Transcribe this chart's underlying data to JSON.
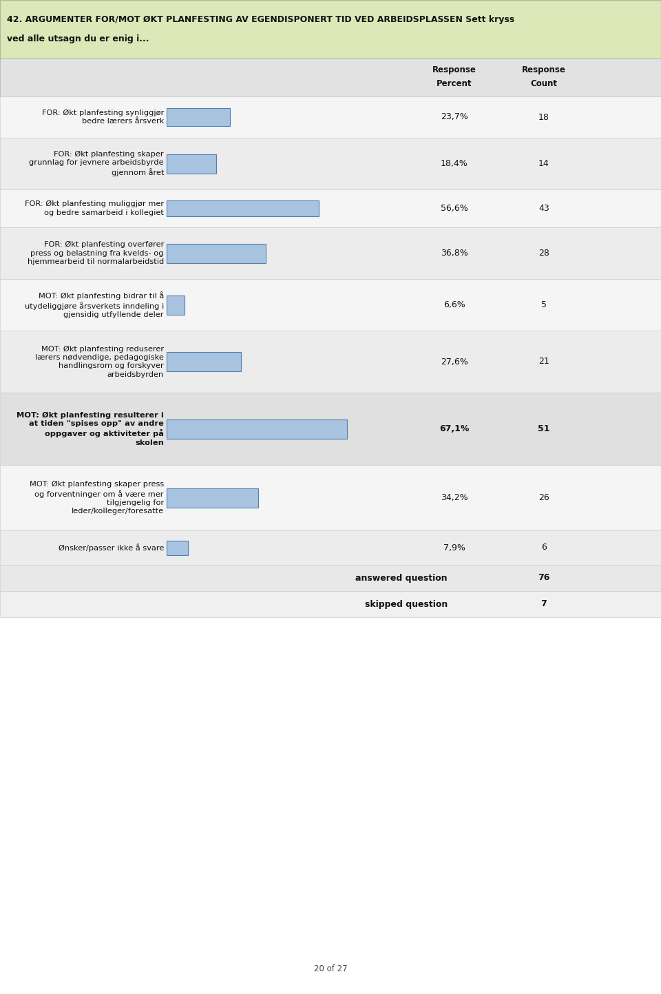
{
  "title_line1": "42. ARGUMENTER FOR/MOT ØKT PLANFESTING AV EGENDISPONERT TID VED ARBEIDSPLASSEN Sett kryss",
  "title_line2": "ved alle utsagn du er enig i...",
  "title_bg": "#dce8b8",
  "header_bg": "#e2e2e2",
  "bar_fill": "#a8c4e0",
  "bar_edge": "#5080b0",
  "rows": [
    {
      "label": "FOR: Økt planfesting synliggjør\nbedre lærers årsverk",
      "percent": 23.7,
      "percent_str": "23,7%",
      "count": "18",
      "bold": false,
      "n_lines": 2
    },
    {
      "label": "FOR: Økt planfesting skaper\ngrunnlag for jevnere arbeidsbyrde\ngjennom året",
      "percent": 18.4,
      "percent_str": "18,4%",
      "count": "14",
      "bold": false,
      "n_lines": 3
    },
    {
      "label": "FOR: Økt planfesting muliggjør mer\nog bedre samarbeid i kollegiet",
      "percent": 56.6,
      "percent_str": "56,6%",
      "count": "43",
      "bold": false,
      "n_lines": 2
    },
    {
      "label": "FOR: Økt planfesting overfører\npress og belastning fra kvelds- og\nhjemmearbeid til normalarbeidstid",
      "percent": 36.8,
      "percent_str": "36,8%",
      "count": "28",
      "bold": false,
      "n_lines": 3
    },
    {
      "label": "MOT: Økt planfesting bidrar til å\nutydeliggjøre årsverkets inndeling i\ngjensidig utfyllende deler",
      "percent": 6.6,
      "percent_str": "6,6%",
      "count": "5",
      "bold": false,
      "n_lines": 3
    },
    {
      "label": "MOT: Økt planfesting reduserer\nlærers nødvendige, pedagogiske\nhandlingsrom og forskyver\narbeidsbyrden",
      "percent": 27.6,
      "percent_str": "27,6%",
      "count": "21",
      "bold": false,
      "n_lines": 4
    },
    {
      "label": "MOT: Økt planfesting resulterer i\nat tiden \"spises opp\" av andre\noppgaver og aktiviteter på\nskolen",
      "percent": 67.1,
      "percent_str": "67,1%",
      "count": "51",
      "bold": true,
      "n_lines": 4
    },
    {
      "label": "MOT: Økt planfesting skaper press\nog forventninger om å være mer\ntilgjengelig for\nleder/kolleger/foresatte",
      "percent": 34.2,
      "percent_str": "34,2%",
      "count": "26",
      "bold": false,
      "n_lines": 4
    },
    {
      "label": "Ønsker/passer ikke å svare",
      "percent": 7.9,
      "percent_str": "7,9%",
      "count": "6",
      "bold": false,
      "n_lines": 1
    }
  ],
  "answered_question": "76",
  "skipped_question": "7",
  "footer_text": "20 of 27",
  "bar_scale": 100.0
}
